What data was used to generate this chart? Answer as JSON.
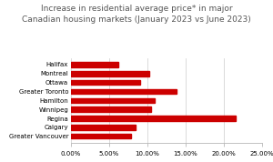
{
  "title": "Increase in residential average price* in major\nCanadian housing markets (January 2023 vs June 2023)",
  "categories": [
    "Greater Vancouver",
    "Calgary",
    "Regina",
    "Winnipeg",
    "Hamilton",
    "Greater Toronto",
    "Ottawa",
    "Montreal",
    "Halifax"
  ],
  "values": [
    0.078,
    0.085,
    0.215,
    0.105,
    0.11,
    0.138,
    0.09,
    0.102,
    0.062
  ],
  "bar_color": "#cc0000",
  "xlim": [
    0,
    0.25
  ],
  "xticks": [
    0.0,
    0.05,
    0.1,
    0.15,
    0.2,
    0.25
  ],
  "xtick_labels": [
    "0.00%",
    "5.00%",
    "10.00%",
    "15.00%",
    "20.00%",
    "25.00%"
  ],
  "background_color": "#ffffff",
  "title_fontsize": 6.5,
  "tick_fontsize": 5.0,
  "label_fontsize": 5.0
}
